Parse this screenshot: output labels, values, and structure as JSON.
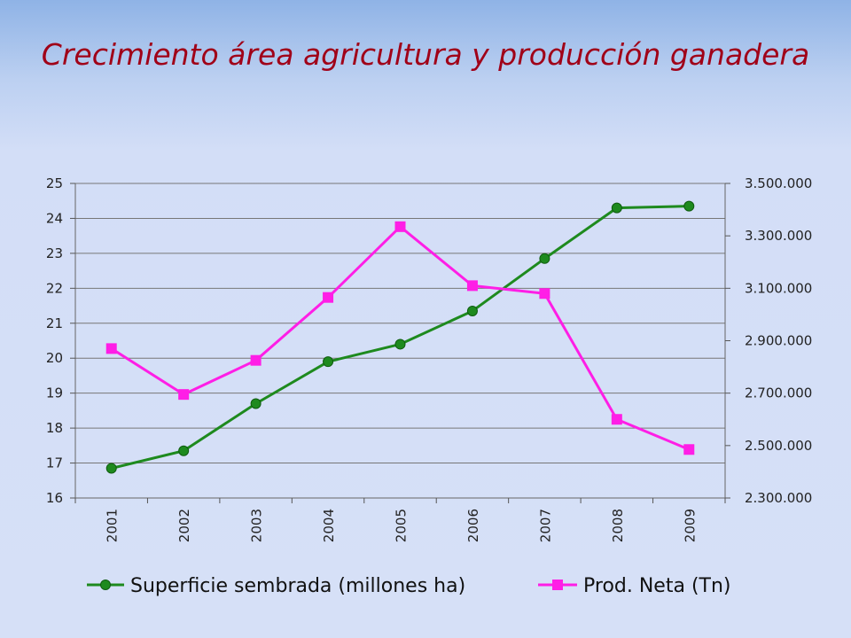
{
  "slide": {
    "title": "Crecimiento área agricultura y producción ganadera"
  },
  "chart_data": {
    "type": "line",
    "categories": [
      "2001",
      "2002",
      "2003",
      "2004",
      "2005",
      "2006",
      "2007",
      "2008",
      "2009"
    ],
    "ylim_left": [
      16,
      25
    ],
    "yticks_left": [
      "16",
      "17",
      "18",
      "19",
      "20",
      "21",
      "22",
      "23",
      "24",
      "25"
    ],
    "ylim_right": [
      2300000,
      3500000
    ],
    "yticks_right": [
      "2.300.000",
      "2.500.000",
      "2.700.000",
      "2.900.000",
      "3.100.000",
      "3.300.000",
      "3.500.000"
    ],
    "grid": true,
    "legend_position": "bottom",
    "series": [
      {
        "name": "Superficie sembrada (millones ha)",
        "axis": "left",
        "color": "#1e8a1e",
        "marker": "circle",
        "values": [
          16.85,
          17.35,
          18.7,
          19.9,
          20.4,
          21.35,
          22.85,
          24.3,
          24.35
        ]
      },
      {
        "name": "Prod. Neta (Tn)",
        "axis": "right",
        "color": "#ff1ee6",
        "marker": "square",
        "values": [
          2870000,
          2695000,
          2825000,
          3065000,
          3335000,
          3110000,
          3080000,
          2600000,
          2485000
        ]
      }
    ]
  }
}
